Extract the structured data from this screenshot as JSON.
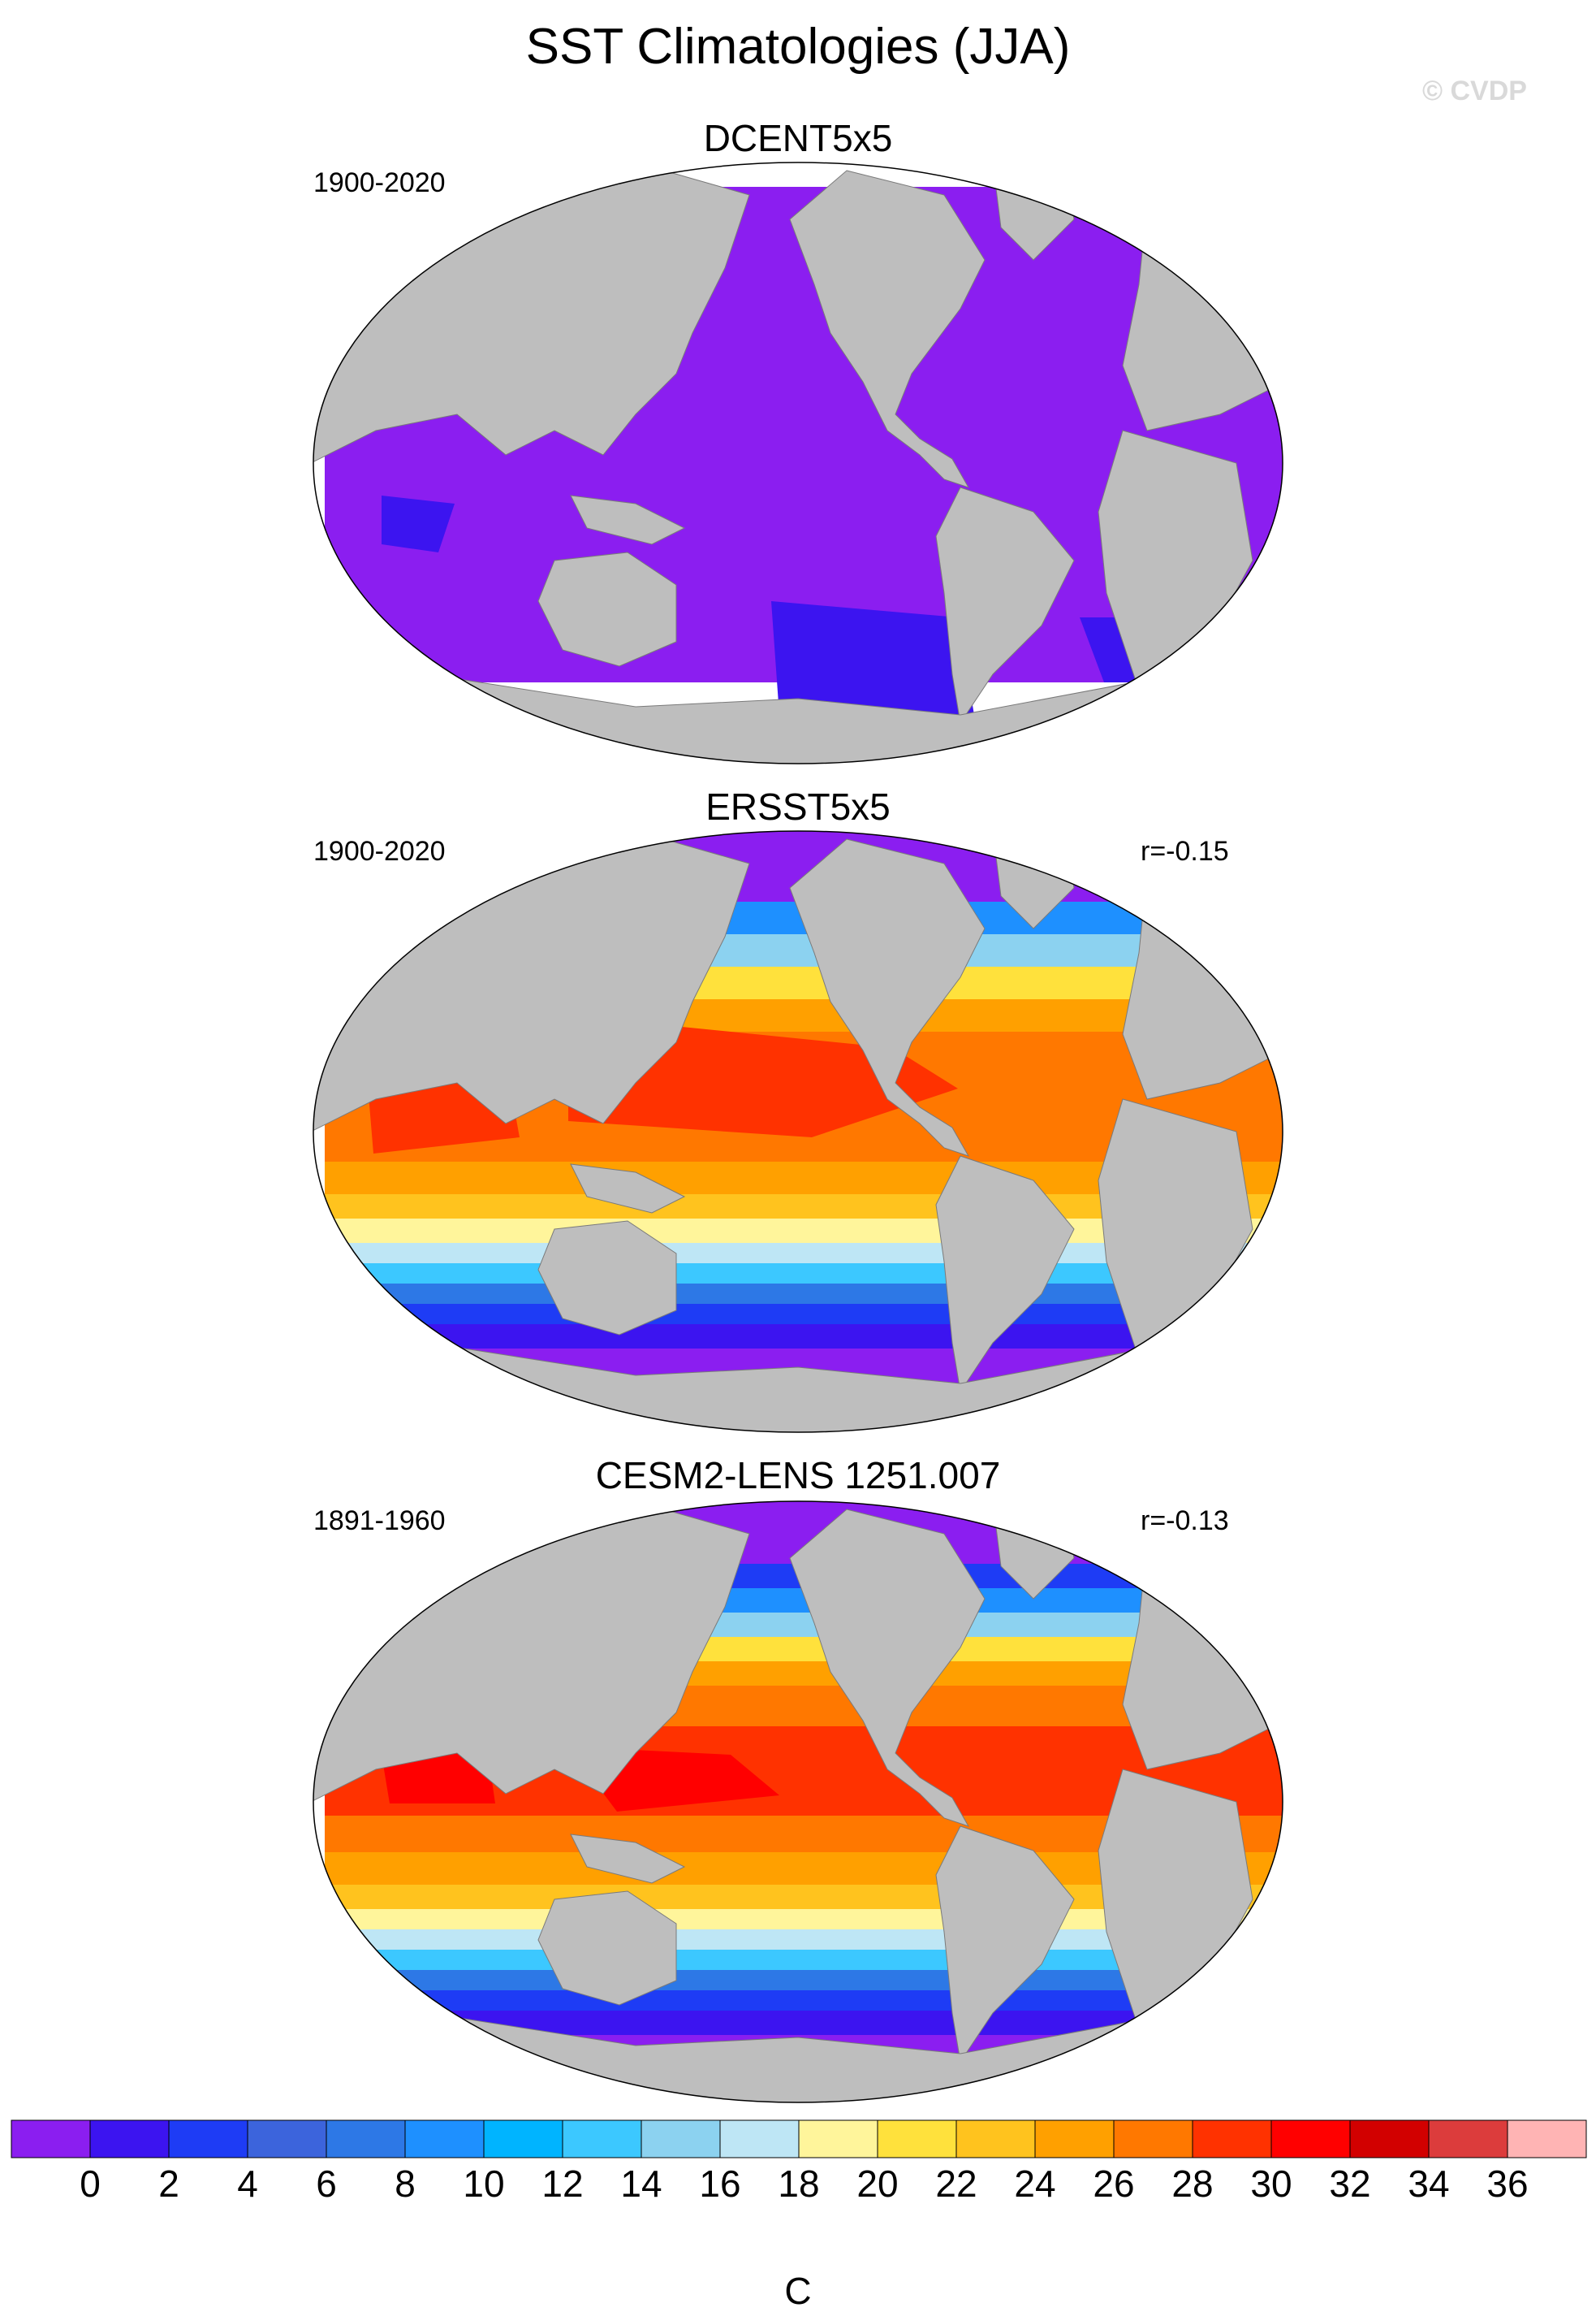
{
  "title": "SST Climatologies (JJA)",
  "watermark": "© CVDP",
  "panels": [
    {
      "title": "DCENT5x5",
      "period": "1900-2020",
      "r": ""
    },
    {
      "title": "ERSST5x5",
      "period": "1900-2020",
      "r": "r=-0.15"
    },
    {
      "title": "CESM2-LENS 1251.007",
      "period": "1891-1960",
      "r": "r=-0.13"
    }
  ],
  "colorbar": {
    "units": "C",
    "labels": [
      "0",
      "2",
      "4",
      "6",
      "8",
      "10",
      "12",
      "14",
      "16",
      "18",
      "20",
      "22",
      "24",
      "26",
      "28",
      "30",
      "32",
      "34",
      "36"
    ],
    "colors": [
      "#8b1ef0",
      "#3c14f0",
      "#1e3cf5",
      "#3c64dc",
      "#2d78e6",
      "#1e90ff",
      "#00b4ff",
      "#3cc8ff",
      "#8cd2f0",
      "#bee6f5",
      "#fff59b",
      "#ffe13c",
      "#ffc31e",
      "#ffa000",
      "#ff7800",
      "#ff3200",
      "#ff0000",
      "#d20000",
      "#dc3c3c",
      "#ffb4b4"
    ],
    "land_color": "#bebebe",
    "missing_color": "#ffffff"
  },
  "map_data": {
    "projection": "Winkel Tripel",
    "variable": "SST",
    "season": "JJA"
  }
}
